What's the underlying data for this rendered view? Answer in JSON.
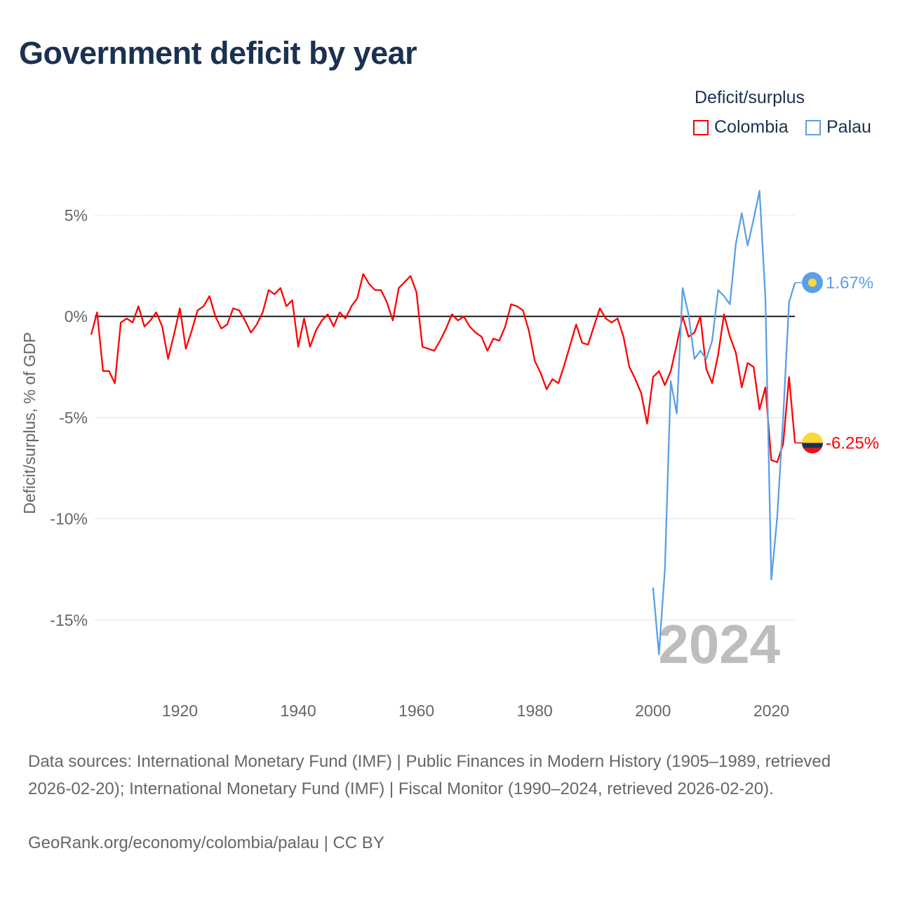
{
  "title": "Government deficit by year",
  "legend": {
    "title": "Deficit/surplus",
    "items": [
      {
        "name": "Colombia",
        "color": "#ff0000"
      },
      {
        "name": "Palau",
        "color": "#5aa0e6"
      }
    ]
  },
  "footer": {
    "sources": "Data sources: International Monetary Fund (IMF) | Public Finances in Modern History (1905–1989, retrieved 2026-02-20); International Monetary Fund (IMF) | Fiscal Monitor (1990–2024, retrieved 2026-02-20).",
    "credit": "GeoRank.org/economy/colombia/palau | CC BY"
  },
  "chart_data": {
    "type": "line",
    "title": "Government deficit by year",
    "xlabel": "",
    "ylabel": "Deficit/surplus, % of GDP",
    "xlim": [
      1905,
      2024
    ],
    "ylim": [
      -17,
      6.5
    ],
    "x_ticks": [
      "1920",
      "1940",
      "1960",
      "1980",
      "2000",
      "2020"
    ],
    "y_ticks": [
      {
        "value": 5,
        "label": "5%"
      },
      {
        "value": 0,
        "label": "0%"
      },
      {
        "value": -5,
        "label": "-5%"
      },
      {
        "value": -10,
        "label": "-10%"
      },
      {
        "value": -15,
        "label": "-15%"
      }
    ],
    "year_watermark": "2024",
    "grid": true,
    "legend_position": "top-right",
    "series": [
      {
        "name": "Colombia",
        "color": "#ff0000",
        "start_year": 1905,
        "end_label": "-6.25%",
        "values": [
          -0.9,
          0.2,
          -2.7,
          -2.7,
          -3.3,
          -0.3,
          -0.1,
          -0.3,
          0.5,
          -0.5,
          -0.2,
          0.2,
          -0.5,
          -2.1,
          -0.9,
          0.4,
          -1.6,
          -0.7,
          0.3,
          0.5,
          1.0,
          0,
          -0.6,
          -0.4,
          0.4,
          0.3,
          -0.2,
          -0.8,
          -0.4,
          0.2,
          1.3,
          1.1,
          1.4,
          0.5,
          0.8,
          -1.5,
          -0.1,
          -1.5,
          -0.7,
          -0.2,
          0.1,
          -0.5,
          0.2,
          -0.1,
          0.5,
          0.9,
          2.1,
          1.6,
          1.3,
          1.3,
          0.7,
          -0.2,
          1.4,
          1.7,
          2.0,
          1.2,
          -1.5,
          -1.6,
          -1.7,
          -1.2,
          -0.6,
          0.1,
          -0.2,
          0,
          -0.5,
          -0.8,
          -1.0,
          -1.7,
          -1.1,
          -1.2,
          -0.5,
          0.6,
          0.5,
          0.3,
          -0.7,
          -2.2,
          -2.8,
          -3.6,
          -3.1,
          -3.3,
          -2.4,
          -1.4,
          -0.4,
          -1.3,
          -1.4,
          -0.5,
          0.4,
          -0.1,
          -0.3,
          -0.1,
          -1.0,
          -2.5,
          -3.1,
          -3.8,
          -5.3,
          -3.0,
          -2.7,
          -3.4,
          -2.7,
          -1.4,
          0,
          -1.0,
          -0.8,
          0,
          -2.6,
          -3.3,
          -1.9,
          0.1,
          -1.0,
          -1.8,
          -3.5,
          -2.3,
          -2.5,
          -4.6,
          -3.5,
          -7.1,
          -7.2,
          -6.3,
          -3.0,
          -6.25
        ]
      },
      {
        "name": "Palau",
        "color": "#5aa0e6",
        "start_year": 2000,
        "end_label": "1.67%",
        "values": [
          -13.4,
          -16.7,
          -12.5,
          -3.2,
          -4.8,
          1.4,
          0.1,
          -2.1,
          -1.7,
          -2.1,
          -1.2,
          1.3,
          1.0,
          0.6,
          3.6,
          5.1,
          3.5,
          4.8,
          6.2,
          0.9,
          -13.0,
          -9.9,
          -5.0,
          0.7,
          1.67
        ]
      }
    ]
  }
}
